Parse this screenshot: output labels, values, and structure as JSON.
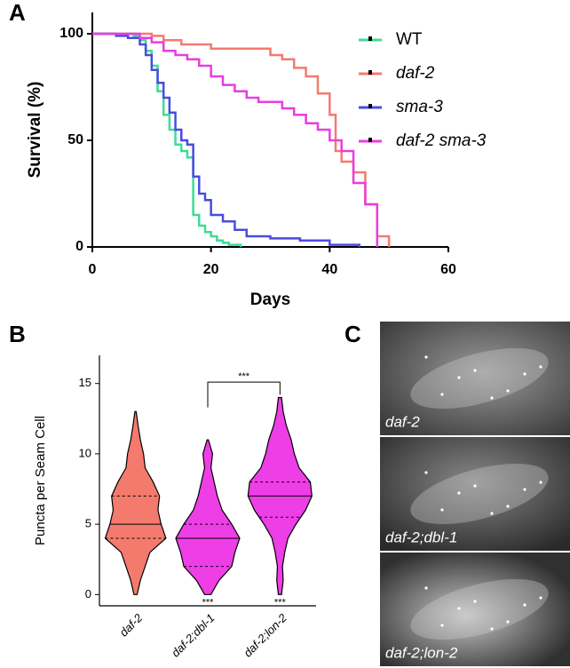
{
  "panel_labels": [
    "A",
    "B",
    "C"
  ],
  "chart_data": [
    {
      "type": "step",
      "xlabel": "Days",
      "ylabel": "Survival (%)",
      "xlim": [
        0,
        60
      ],
      "xticks": [
        0,
        20,
        40,
        60
      ],
      "ylim": [
        0,
        110
      ],
      "yticks": [
        0,
        50,
        100
      ],
      "legend": "right",
      "series": [
        {
          "name": "WT",
          "color": "#3ddc97",
          "x": [
            0,
            7,
            8,
            9,
            10,
            11,
            12,
            13,
            14,
            15,
            16,
            17,
            18,
            19,
            20,
            21,
            22,
            23,
            25
          ],
          "values": [
            100,
            99,
            97,
            92,
            85,
            73,
            62,
            55,
            48,
            45,
            42,
            15,
            10,
            7,
            5,
            3,
            2,
            1,
            0
          ]
        },
        {
          "name": "daf-2",
          "color": "#f47a6e",
          "x": [
            0,
            5,
            10,
            12,
            15,
            20,
            25,
            30,
            32,
            34,
            36,
            38,
            40,
            41,
            42,
            44,
            46,
            48,
            50
          ],
          "values": [
            100,
            100,
            99,
            97,
            95,
            93,
            93,
            90,
            88,
            84,
            80,
            72,
            62,
            45,
            40,
            35,
            20,
            5,
            0
          ]
        },
        {
          "name": "sma-3",
          "color": "#4b4be0",
          "x": [
            0,
            4,
            6,
            8,
            9,
            10,
            11,
            12,
            13,
            14,
            15,
            16,
            17,
            18,
            19,
            20,
            22,
            24,
            26,
            30,
            35,
            40,
            45
          ],
          "values": [
            100,
            99,
            98,
            95,
            90,
            83,
            77,
            70,
            63,
            55,
            50,
            48,
            33,
            25,
            22,
            15,
            12,
            8,
            5,
            4,
            3,
            1,
            0
          ]
        },
        {
          "name": "daf-2 sma-3",
          "color": "#e83ee0",
          "x": [
            0,
            8,
            10,
            12,
            14,
            16,
            18,
            20,
            22,
            24,
            26,
            28,
            30,
            32,
            34,
            36,
            38,
            40,
            42,
            44,
            46,
            48
          ],
          "values": [
            100,
            98,
            96,
            92,
            90,
            88,
            85,
            80,
            76,
            73,
            70,
            68,
            68,
            65,
            62,
            58,
            55,
            50,
            45,
            30,
            20,
            0
          ]
        }
      ]
    },
    {
      "type": "violin",
      "ylabel": "Puncta per Seam Cell",
      "ylim": [
        -0.8,
        17
      ],
      "yticks": [
        0,
        5,
        10,
        15
      ],
      "categories": [
        "daf-2",
        "daf-2;dbl-1",
        "daf-2;lon-2"
      ],
      "colors": [
        "#f47a6e",
        "#ee3ee6",
        "#ee3ee6"
      ],
      "violins": [
        {
          "min": 0,
          "max": 13,
          "median": 5,
          "q1": 4,
          "q3": 7,
          "widths": [
            0.05,
            0.15,
            0.3,
            0.45,
            0.95,
            0.8,
            0.7,
            0.75,
            0.55,
            0.3,
            0.25,
            0.15,
            0.08,
            0.02
          ]
        },
        {
          "min": 0,
          "max": 11,
          "median": 4,
          "q1": 2,
          "q3": 5,
          "widths": [
            0.1,
            0.35,
            0.75,
            0.85,
            1.0,
            0.75,
            0.45,
            0.3,
            0.2,
            0.1,
            0.15,
            0.02
          ]
        },
        {
          "min": 0,
          "max": 14,
          "median": 7,
          "q1": 5.5,
          "q3": 8,
          "widths": [
            0.05,
            0.1,
            0.08,
            0.15,
            0.25,
            0.5,
            0.8,
            1.0,
            0.95,
            0.6,
            0.45,
            0.35,
            0.2,
            0.1,
            0.05
          ]
        }
      ],
      "significance_below": [
        null,
        "***",
        "***"
      ],
      "bracket": {
        "from": 1,
        "to": 2,
        "text": "***"
      }
    }
  ],
  "images": {
    "labels": [
      "daf-2",
      "daf-2;dbl-1",
      "daf-2;lon-2"
    ]
  }
}
